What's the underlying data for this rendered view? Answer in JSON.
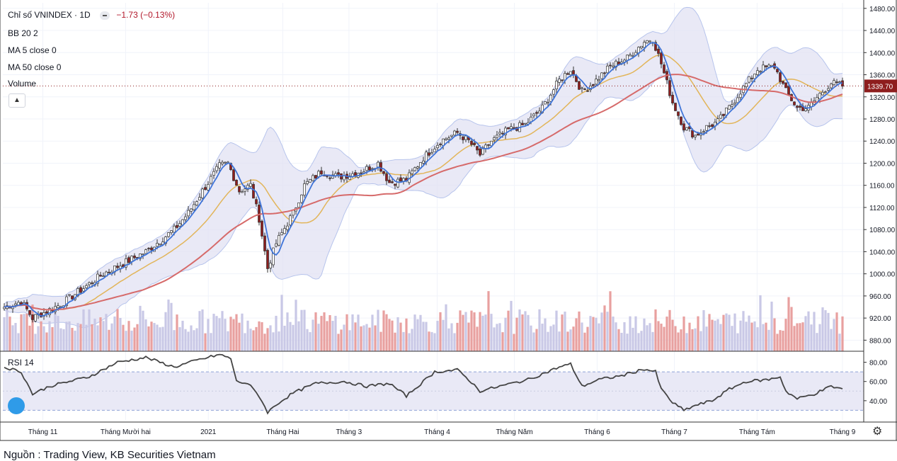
{
  "legend": {
    "title": "Chỉ số VNINDEX · 1D",
    "change": "−1.73 (−0.13%)",
    "bb": "BB 20 2",
    "ma5": "MA 5 close 0",
    "ma50": "MA 50 close 0",
    "volume": "Volume",
    "rsi": "RSI 14"
  },
  "source": "Nguồn : Trading View, KB Securities Vietnam",
  "chart_data": {
    "type": "candlestick",
    "price_axis": {
      "range": [
        860,
        1490
      ],
      "ticks": [
        "1480.00",
        "1440.00",
        "1400.00",
        "1360.00",
        "1320.00",
        "1280.00",
        "1240.00",
        "1200.00",
        "1160.00",
        "1120.00",
        "1080.00",
        "1040.00",
        "1000.00",
        "960.00",
        "920.00",
        "880.00"
      ]
    },
    "last_price": "1339.70",
    "rsi_axis": {
      "range": [
        20,
        90
      ],
      "ticks": [
        "80.00",
        "60.00",
        "40.00"
      ],
      "overbought": 70,
      "oversold": 30
    },
    "x_labels": [
      "Tháng 11",
      "Tháng Mười hai",
      "2021",
      "Tháng Hai",
      "Tháng 3",
      "Tháng 4",
      "Tháng Năm",
      "Tháng 6",
      "Tháng 7",
      "Tháng Tám",
      "Tháng 9"
    ],
    "close_anchors": [
      [
        0,
        940
      ],
      [
        6,
        950
      ],
      [
        10,
        920
      ],
      [
        20,
        945
      ],
      [
        35,
        1000
      ],
      [
        50,
        1040
      ],
      [
        60,
        1080
      ],
      [
        65,
        1110
      ],
      [
        70,
        1150
      ],
      [
        76,
        1195
      ],
      [
        79,
        1200
      ],
      [
        83,
        1150
      ],
      [
        87,
        1160
      ],
      [
        90,
        1100
      ],
      [
        93,
        1010
      ],
      [
        96,
        1055
      ],
      [
        102,
        1110
      ],
      [
        106,
        1160
      ],
      [
        112,
        1185
      ],
      [
        118,
        1175
      ],
      [
        126,
        1185
      ],
      [
        132,
        1200
      ],
      [
        136,
        1165
      ],
      [
        142,
        1170
      ],
      [
        148,
        1210
      ],
      [
        154,
        1240
      ],
      [
        160,
        1255
      ],
      [
        164,
        1240
      ],
      [
        168,
        1215
      ],
      [
        172,
        1240
      ],
      [
        178,
        1260
      ],
      [
        184,
        1270
      ],
      [
        190,
        1300
      ],
      [
        196,
        1350
      ],
      [
        200,
        1370
      ],
      [
        204,
        1330
      ],
      [
        208,
        1345
      ],
      [
        214,
        1375
      ],
      [
        220,
        1390
      ],
      [
        226,
        1420
      ],
      [
        229,
        1425
      ],
      [
        232,
        1380
      ],
      [
        236,
        1310
      ],
      [
        240,
        1265
      ],
      [
        244,
        1250
      ],
      [
        248,
        1265
      ],
      [
        252,
        1275
      ],
      [
        256,
        1300
      ],
      [
        260,
        1330
      ],
      [
        266,
        1370
      ],
      [
        272,
        1375
      ],
      [
        276,
        1330
      ],
      [
        280,
        1300
      ],
      [
        284,
        1300
      ],
      [
        288,
        1325
      ],
      [
        292,
        1345
      ],
      [
        296,
        1340
      ]
    ],
    "candle_count": 297,
    "volume_note": "daily volume bars, red = down day, lavender = up day",
    "rsi_anchors": [
      [
        0,
        75
      ],
      [
        6,
        70
      ],
      [
        10,
        47
      ],
      [
        16,
        55
      ],
      [
        30,
        65
      ],
      [
        40,
        80
      ],
      [
        50,
        85
      ],
      [
        60,
        75
      ],
      [
        68,
        82
      ],
      [
        76,
        88
      ],
      [
        80,
        84
      ],
      [
        82,
        60
      ],
      [
        86,
        58
      ],
      [
        90,
        45
      ],
      [
        93,
        28
      ],
      [
        97,
        38
      ],
      [
        102,
        48
      ],
      [
        110,
        58
      ],
      [
        120,
        60
      ],
      [
        128,
        55
      ],
      [
        136,
        58
      ],
      [
        142,
        45
      ],
      [
        146,
        55
      ],
      [
        152,
        70
      ],
      [
        160,
        72
      ],
      [
        164,
        62
      ],
      [
        168,
        50
      ],
      [
        175,
        55
      ],
      [
        185,
        62
      ],
      [
        196,
        75
      ],
      [
        200,
        78
      ],
      [
        204,
        55
      ],
      [
        210,
        62
      ],
      [
        218,
        66
      ],
      [
        226,
        73
      ],
      [
        230,
        70
      ],
      [
        232,
        52
      ],
      [
        236,
        38
      ],
      [
        240,
        30
      ],
      [
        244,
        35
      ],
      [
        250,
        40
      ],
      [
        256,
        52
      ],
      [
        262,
        60
      ],
      [
        270,
        62
      ],
      [
        274,
        65
      ],
      [
        276,
        50
      ],
      [
        280,
        42
      ],
      [
        286,
        47
      ],
      [
        292,
        55
      ],
      [
        296,
        52
      ]
    ]
  }
}
